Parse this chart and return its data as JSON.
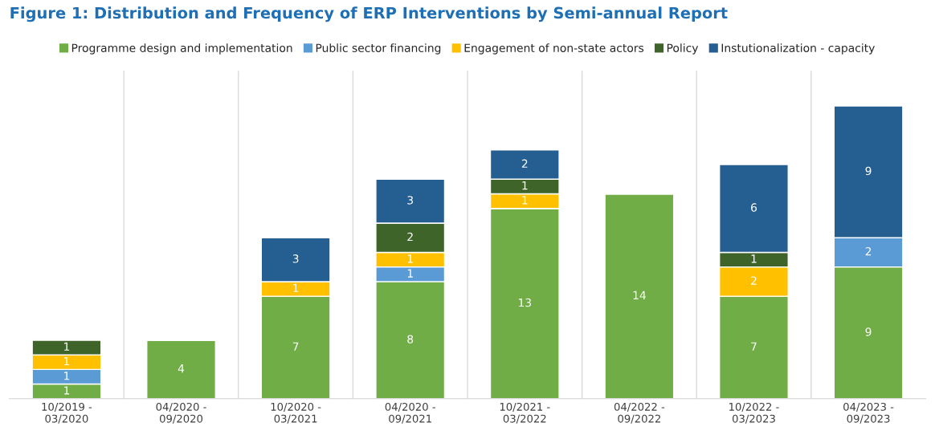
{
  "chart_data": {
    "type": "bar",
    "stacked": true,
    "title": "Figure 1: Distribution and Frequency of ERP Interventions by Semi-annual Report",
    "categories": [
      "10/2019 -\n03/2020",
      "04/2020 -\n09/2020",
      "10/2020 -\n03/2021",
      "04/2020 -\n09/2021",
      "10/2021 -\n03/2022",
      "04/2022 -\n09/2022",
      "10/2022 -\n03/2023",
      "04/2023 -\n09/2023"
    ],
    "series": [
      {
        "name": "Programme design and implementation",
        "color": "#70ad47",
        "values": [
          1,
          4,
          7,
          8,
          13,
          14,
          7,
          9
        ]
      },
      {
        "name": "Public sector financing",
        "color": "#5b9bd5",
        "values": [
          1,
          null,
          null,
          1,
          null,
          null,
          null,
          2
        ]
      },
      {
        "name": "Engagement of non-state actors",
        "color": "#ffc000",
        "values": [
          1,
          null,
          1,
          1,
          1,
          null,
          2,
          null
        ]
      },
      {
        "name": "Policy",
        "color": "#3f6429",
        "values": [
          1,
          null,
          null,
          2,
          1,
          null,
          1,
          null
        ]
      },
      {
        "name": "Instutionalization - capacity",
        "color": "#255e91",
        "values": [
          null,
          null,
          3,
          3,
          2,
          null,
          6,
          9
        ]
      }
    ],
    "data_labels": true,
    "legend": "top",
    "grid": "x"
  }
}
